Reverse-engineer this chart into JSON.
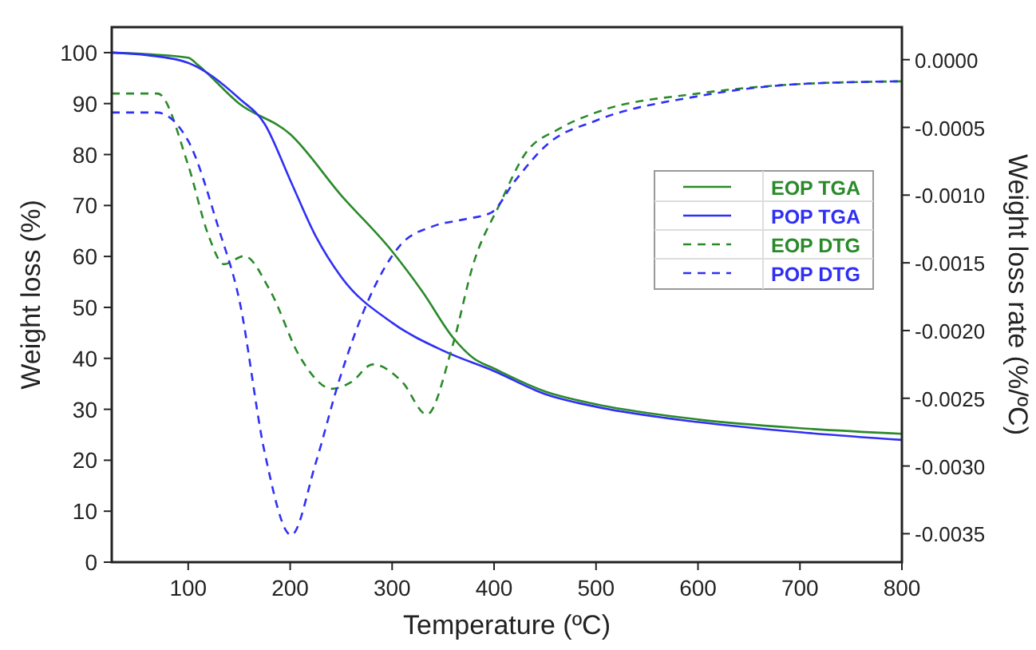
{
  "chart_data": {
    "type": "line",
    "xlabel": "Temperature (ºC)",
    "ylabel": "Weight loss (%)",
    "y2label": "Weight loss rate (%/ºC)",
    "xlim": [
      25,
      800
    ],
    "xticks": [
      100,
      200,
      300,
      400,
      500,
      600,
      700,
      800
    ],
    "ylim": [
      0,
      105
    ],
    "yticks": [
      0,
      10,
      20,
      30,
      40,
      50,
      60,
      70,
      80,
      90,
      100
    ],
    "y2lim": [
      -0.00371,
      0.00024
    ],
    "y2ticks": [
      {
        "value": 0,
        "label": "0.0000"
      },
      {
        "value": -0.0005,
        "label": "-0.0005"
      },
      {
        "value": -0.001,
        "label": "-0.0010"
      },
      {
        "value": -0.0015,
        "label": "-0.0015"
      },
      {
        "value": -0.002,
        "label": "-0.0020"
      },
      {
        "value": -0.0025,
        "label": "-0.0025"
      },
      {
        "value": -0.003,
        "label": "-0.0030"
      },
      {
        "value": -0.0035,
        "label": "-0.0035"
      }
    ],
    "grid": false,
    "legend": "right",
    "marker": "none",
    "series": [
      {
        "name": "EOP TGA",
        "color": "#2a8a2a",
        "line_style": "solid",
        "x": [
          25,
          60,
          100,
          110,
          150,
          200,
          250,
          300,
          330,
          360,
          380,
          400,
          450,
          500,
          600,
          700,
          800
        ],
        "values": [
          100,
          99.7,
          99,
          97.5,
          90,
          84,
          72,
          61,
          53,
          44,
          40,
          38,
          33.5,
          31,
          28,
          26.3,
          25.2
        ]
      },
      {
        "name": "POP TGA",
        "color": "#2f2ff5",
        "line_style": "solid",
        "x": [
          25,
          60,
          100,
          150,
          175,
          200,
          225,
          250,
          300,
          350,
          400,
          450,
          500,
          600,
          700,
          800
        ],
        "values": [
          100,
          99.5,
          98,
          91,
          86,
          75,
          64,
          56,
          47,
          41.5,
          37.5,
          33,
          30.5,
          27.5,
          25.5,
          24
        ]
      },
      {
        "name": "EOP DTG",
        "color": "#2a8a2a",
        "line_style": "dashed",
        "axis": "y2",
        "x": [
          25,
          70,
          100,
          120,
          135,
          155,
          180,
          210,
          241,
          260,
          281,
          310,
          334,
          359,
          380,
          406,
          430,
          464,
          500,
          600,
          700,
          800
        ],
        "values": [
          -0.00025,
          -0.00025,
          -0.00078,
          -0.0013,
          -0.00151,
          -0.00145,
          -0.0017,
          -0.0022,
          -0.00243,
          -0.00238,
          -0.00225,
          -0.00238,
          -0.00262,
          -0.00212,
          -0.0015,
          -0.00106,
          -0.0007,
          -0.00051,
          -0.00039,
          -0.00025,
          -0.00018,
          -0.00016
        ]
      },
      {
        "name": "POP DTG",
        "color": "#2f2ff5",
        "line_style": "dashed",
        "axis": "y2",
        "x": [
          25,
          69,
          100,
          130,
          150,
          175,
          201,
          225,
          248,
          277,
          308,
          340,
          370,
          397,
          420,
          453,
          500,
          600,
          700,
          800
        ],
        "values": [
          -0.00039,
          -0.00039,
          -0.0006,
          -0.00125,
          -0.00177,
          -0.0029,
          -0.00351,
          -0.00298,
          -0.00237,
          -0.00177,
          -0.00137,
          -0.00123,
          -0.00118,
          -0.00113,
          -0.0009,
          -0.00062,
          -0.00045,
          -0.00027,
          -0.00018,
          -0.00016
        ]
      }
    ]
  }
}
